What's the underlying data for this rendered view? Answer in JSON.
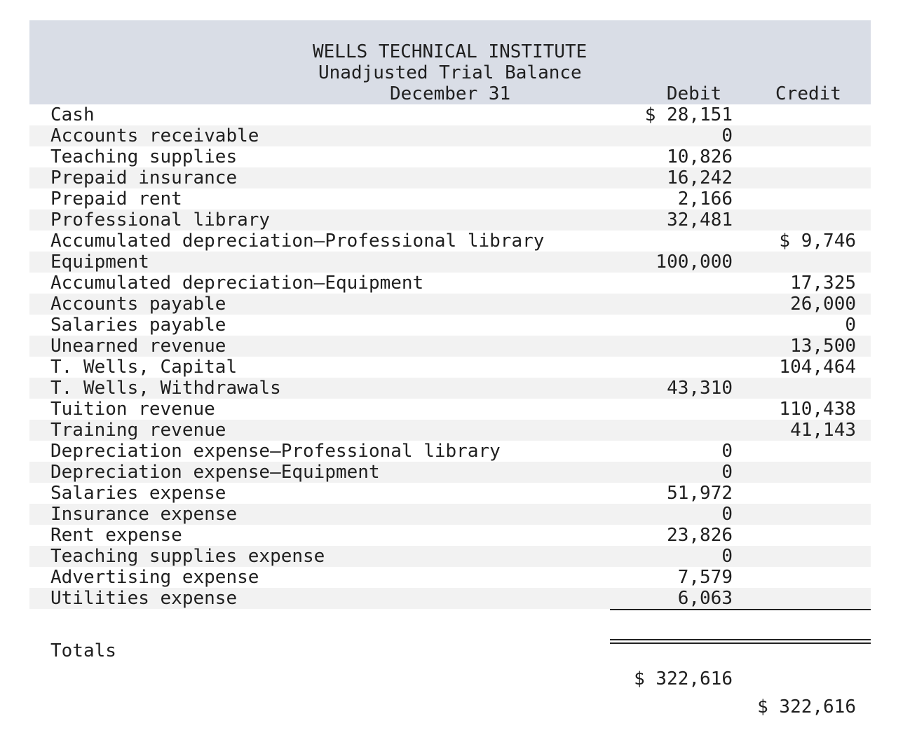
{
  "report": {
    "company": "WELLS TECHNICAL INSTITUTE",
    "title": "Unadjusted Trial Balance",
    "date": "December 31",
    "debit_header": "Debit",
    "credit_header": "Credit"
  },
  "rows": [
    {
      "label": "Cash",
      "debit": "$ 28,151",
      "credit": ""
    },
    {
      "label": "Accounts receivable",
      "debit": "0",
      "credit": ""
    },
    {
      "label": "Teaching supplies",
      "debit": "10,826",
      "credit": ""
    },
    {
      "label": "Prepaid insurance",
      "debit": "16,242",
      "credit": ""
    },
    {
      "label": "Prepaid rent",
      "debit": "2,166",
      "credit": ""
    },
    {
      "label": "Professional library",
      "debit": "32,481",
      "credit": ""
    },
    {
      "label": "Accumulated depreciation—Professional library",
      "debit": "",
      "credit": "$ 9,746"
    },
    {
      "label": "Equipment",
      "debit": "100,000",
      "credit": ""
    },
    {
      "label": "Accumulated depreciation—Equipment",
      "debit": "",
      "credit": "17,325"
    },
    {
      "label": "Accounts payable",
      "debit": "",
      "credit": "26,000"
    },
    {
      "label": "Salaries payable",
      "debit": "",
      "credit": "0"
    },
    {
      "label": "Unearned revenue",
      "debit": "",
      "credit": "13,500"
    },
    {
      "label": "T. Wells, Capital",
      "debit": "",
      "credit": "104,464"
    },
    {
      "label": "T. Wells, Withdrawals",
      "debit": "43,310",
      "credit": ""
    },
    {
      "label": "Tuition revenue",
      "debit": "",
      "credit": "110,438"
    },
    {
      "label": "Training revenue",
      "debit": "",
      "credit": "41,143"
    },
    {
      "label": "Depreciation expense—Professional library",
      "debit": "0",
      "credit": ""
    },
    {
      "label": "Depreciation expense—Equipment",
      "debit": "0",
      "credit": ""
    },
    {
      "label": "Salaries expense",
      "debit": "51,972",
      "credit": ""
    },
    {
      "label": "Insurance expense",
      "debit": "0",
      "credit": ""
    },
    {
      "label": "Rent expense",
      "debit": "23,826",
      "credit": ""
    },
    {
      "label": "Teaching supplies expense",
      "debit": "0",
      "credit": ""
    },
    {
      "label": "Advertising expense",
      "debit": "7,579",
      "credit": ""
    },
    {
      "label": "Utilities expense",
      "debit": "6,063",
      "credit": ""
    }
  ],
  "totals": {
    "label": "Totals",
    "debit": "$ 322,616",
    "credit": "$ 322,616"
  },
  "colors": {
    "header_bg": "#d9dde6",
    "alt_row_bg": "#f2f2f2",
    "text": "#1f1f1f"
  }
}
